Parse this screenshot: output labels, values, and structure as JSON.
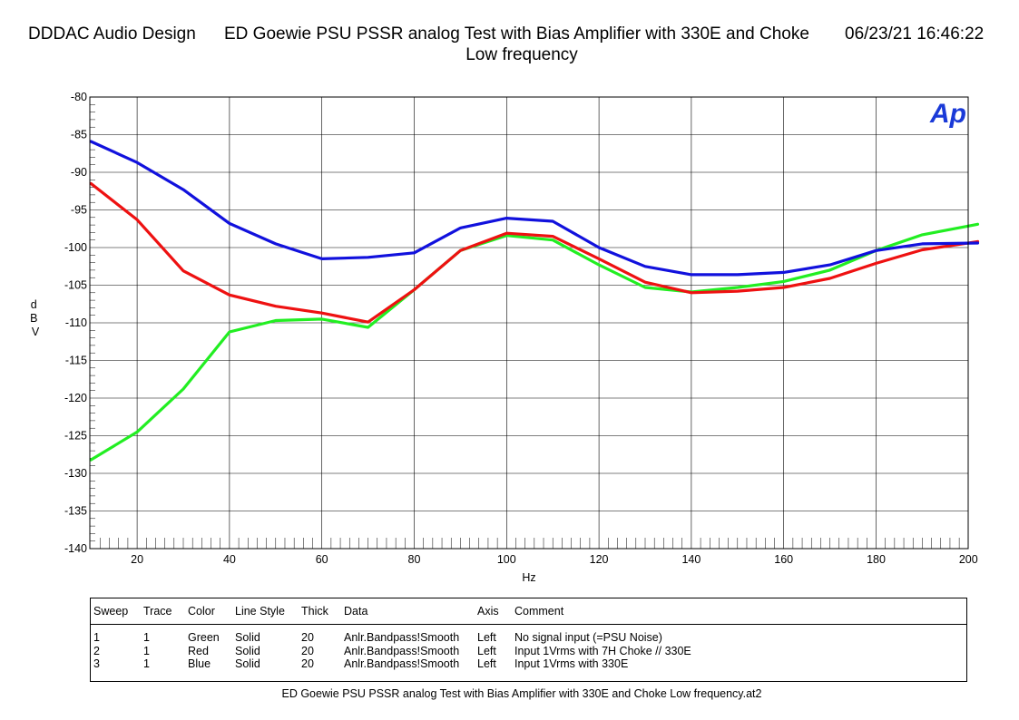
{
  "header": {
    "company": "DDDAC Audio Design",
    "title": "ED Goewie PSU PSSR analog Test with Bias Amplifier with 330E and Choke",
    "datetime": "06/23/21 16:46:22",
    "subtitle": "Low frequency"
  },
  "logo": "Ap",
  "chart_data": {
    "type": "line",
    "title": "ED Goewie PSU PSSR analog Test with Bias Amplifier with 330E and Choke",
    "subtitle": "Low frequency",
    "xlabel": "Hz",
    "ylabel": "dBV",
    "xlim": [
      10,
      202
    ],
    "ylim": [
      -140,
      -80
    ],
    "xticks": [
      20,
      40,
      60,
      80,
      100,
      120,
      140,
      160,
      180,
      200
    ],
    "yticks": [
      -80,
      -85,
      -90,
      -95,
      -100,
      -105,
      -110,
      -115,
      -120,
      -125,
      -130,
      -135,
      -140
    ],
    "grid": true,
    "x": [
      10,
      20,
      30,
      40,
      50,
      60,
      70,
      80,
      90,
      100,
      110,
      120,
      130,
      140,
      150,
      160,
      170,
      180,
      190,
      202
    ],
    "series": [
      {
        "name": "No signal input (=PSU Noise)",
        "color": "#22ee22",
        "values": [
          -128.2,
          -124.5,
          -118.8,
          -111.2,
          -109.7,
          -109.5,
          -110.6,
          -105.6,
          -100.4,
          -98.4,
          -99.0,
          -102.3,
          -105.3,
          -105.9,
          -105.3,
          -104.5,
          -103.0,
          -100.4,
          -98.3,
          -96.9
        ]
      },
      {
        "name": "Input 1Vrms with 7H Choke // 330E",
        "color": "#ee1111",
        "values": [
          -91.5,
          -96.3,
          -103.1,
          -106.3,
          -107.8,
          -108.7,
          -109.9,
          -105.6,
          -100.4,
          -98.1,
          -98.5,
          -101.5,
          -104.6,
          -106.0,
          -105.8,
          -105.3,
          -104.1,
          -102.1,
          -100.3,
          -99.2
        ]
      },
      {
        "name": "Input 1Vrms with 330E",
        "color": "#1111dd",
        "values": [
          -85.9,
          -88.7,
          -92.3,
          -96.8,
          -99.5,
          -101.5,
          -101.3,
          -100.7,
          -97.4,
          -96.1,
          -96.5,
          -100.0,
          -102.5,
          -103.6,
          -103.6,
          -103.3,
          -102.3,
          -100.4,
          -99.5,
          -99.4
        ]
      }
    ]
  },
  "legend": {
    "headers": [
      "Sweep",
      "Trace",
      "Color",
      "Line Style",
      "Thick",
      "Data",
      "Axis",
      "Comment"
    ],
    "rows": [
      [
        "1",
        "1",
        "Green",
        "Solid",
        "20",
        "Anlr.Bandpass!Smooth",
        "Left",
        "No signal input (=PSU Noise)"
      ],
      [
        "2",
        "1",
        "Red",
        "Solid",
        "20",
        "Anlr.Bandpass!Smooth",
        "Left",
        "Input 1Vrms with 7H Choke // 330E"
      ],
      [
        "3",
        "1",
        "Blue",
        "Solid",
        "20",
        "Anlr.Bandpass!Smooth",
        "Left",
        "Input 1Vrms with 330E"
      ]
    ]
  },
  "footer": "ED Goewie PSU PSSR analog Test with Bias Amplifier with 330E and Choke Low frequency.at2"
}
